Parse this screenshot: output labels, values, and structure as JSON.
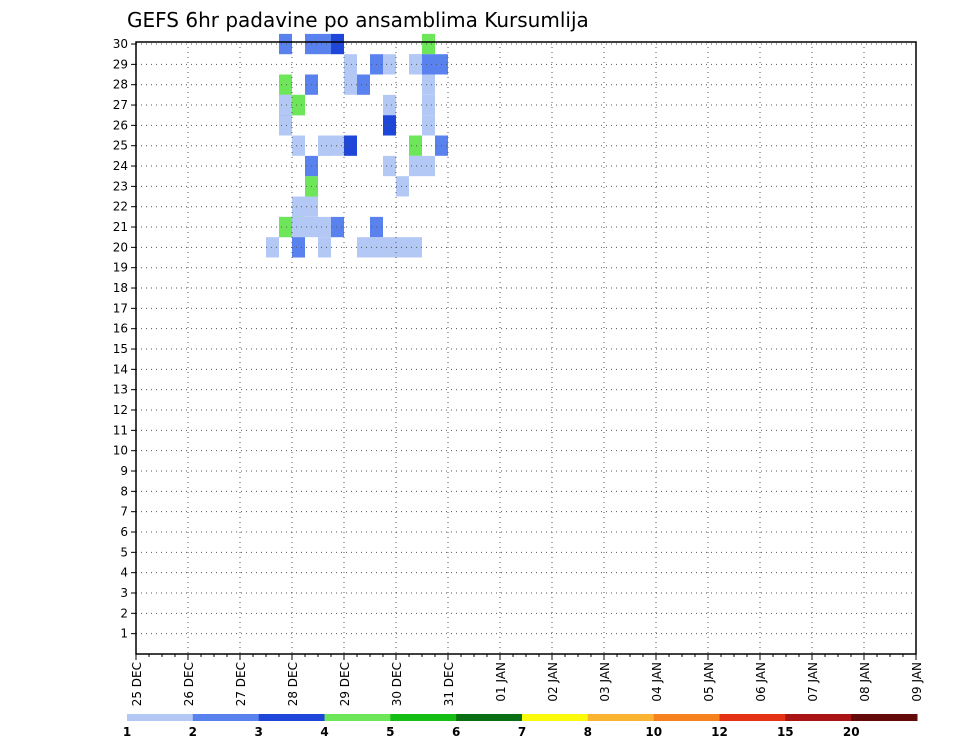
{
  "chart_data": {
    "type": "heatmap",
    "title": "GEFS 6hr padavine po ansamblima Kursumlija",
    "xlabel": "",
    "ylabel": "",
    "x_tick_labels": [
      "25 DEC",
      "26 DEC",
      "27 DEC",
      "28 DEC",
      "29 DEC",
      "30 DEC",
      "31 DEC",
      "01 JAN",
      "02 JAN",
      "03 JAN",
      "04 JAN",
      "05 JAN",
      "06 JAN",
      "07 JAN",
      "08 JAN",
      "09 JAN"
    ],
    "y_tick_labels": [
      "1",
      "2",
      "3",
      "4",
      "5",
      "6",
      "7",
      "8",
      "9",
      "10",
      "11",
      "12",
      "13",
      "14",
      "15",
      "16",
      "17",
      "18",
      "19",
      "20",
      "21",
      "22",
      "23",
      "24",
      "25",
      "26",
      "27",
      "28",
      "29",
      "30"
    ],
    "x_range_days": [
      0,
      15
    ],
    "y_range": [
      0,
      30
    ],
    "grid": "dotted",
    "colorbar": {
      "position": "bottom",
      "colors": [
        "#b4c8f5",
        "#5a82ee",
        "#1e46d8",
        "#6ee65a",
        "#14be14",
        "#0a6e14",
        "#fafa0a",
        "#fab432",
        "#f5821e",
        "#e63214",
        "#aa1414",
        "#640a0a"
      ],
      "labels": [
        "1",
        "2",
        "3",
        "4",
        "5",
        "6",
        "7",
        "8",
        "10",
        "12",
        "15",
        "20"
      ]
    },
    "cells": [
      [
        27.75,
        30,
        1
      ],
      [
        28.25,
        30,
        1
      ],
      [
        30.5,
        30,
        3
      ],
      [
        28.75,
        30,
        2
      ],
      [
        28.5,
        30,
        1
      ],
      [
        30.75,
        29,
        1
      ],
      [
        29,
        29,
        0
      ],
      [
        29.5,
        29,
        1
      ],
      [
        29.75,
        29,
        0
      ],
      [
        30.25,
        29,
        0
      ],
      [
        30.5,
        29,
        1
      ],
      [
        30.25,
        29,
        0
      ],
      [
        27.75,
        28,
        0
      ],
      [
        28.25,
        28,
        1
      ],
      [
        27.75,
        28,
        3
      ],
      [
        29,
        28,
        0
      ],
      [
        29.25,
        28,
        1
      ],
      [
        30.5,
        28,
        0
      ],
      [
        27.75,
        27,
        0
      ],
      [
        27.75,
        27,
        0
      ],
      [
        30.5,
        27,
        0
      ],
      [
        28,
        27,
        0
      ],
      [
        28,
        27,
        3
      ],
      [
        28,
        27,
        3
      ],
      [
        29.75,
        27,
        0
      ],
      [
        29.75,
        26,
        2
      ],
      [
        30.5,
        26,
        0
      ],
      [
        27.75,
        26,
        1
      ],
      [
        27.75,
        26,
        0
      ],
      [
        28,
        25,
        0
      ],
      [
        28.5,
        25,
        0
      ],
      [
        28.5,
        25,
        0
      ],
      [
        29,
        25,
        0
      ],
      [
        29,
        25,
        2
      ],
      [
        28.75,
        25,
        0
      ],
      [
        30.25,
        25,
        0
      ],
      [
        30.25,
        25,
        3
      ],
      [
        30.75,
        25,
        1
      ],
      [
        28.25,
        24,
        0
      ],
      [
        28.25,
        24,
        1
      ],
      [
        30.25,
        24,
        0
      ],
      [
        30.5,
        24,
        0
      ],
      [
        29.75,
        24,
        0
      ],
      [
        30,
        23,
        0
      ],
      [
        28.25,
        23,
        3
      ],
      [
        28,
        22,
        3
      ],
      [
        28,
        22,
        0
      ],
      [
        28.25,
        22,
        0
      ],
      [
        28,
        21,
        3
      ],
      [
        27.75,
        21,
        0
      ],
      [
        27.75,
        21,
        3
      ],
      [
        28,
        21,
        0
      ],
      [
        28.25,
        21,
        0
      ],
      [
        28.5,
        21,
        0
      ],
      [
        28.75,
        21,
        1
      ],
      [
        29.5,
        21,
        0
      ],
      [
        29.5,
        21,
        1
      ],
      [
        28.5,
        20,
        0
      ],
      [
        27.5,
        20,
        0
      ],
      [
        28,
        20,
        1
      ],
      [
        29.25,
        20,
        0
      ],
      [
        29.75,
        20,
        0
      ],
      [
        30,
        20,
        0
      ],
      [
        30.25,
        20,
        0
      ],
      [
        29.5,
        20,
        0
      ]
    ],
    "series": []
  }
}
